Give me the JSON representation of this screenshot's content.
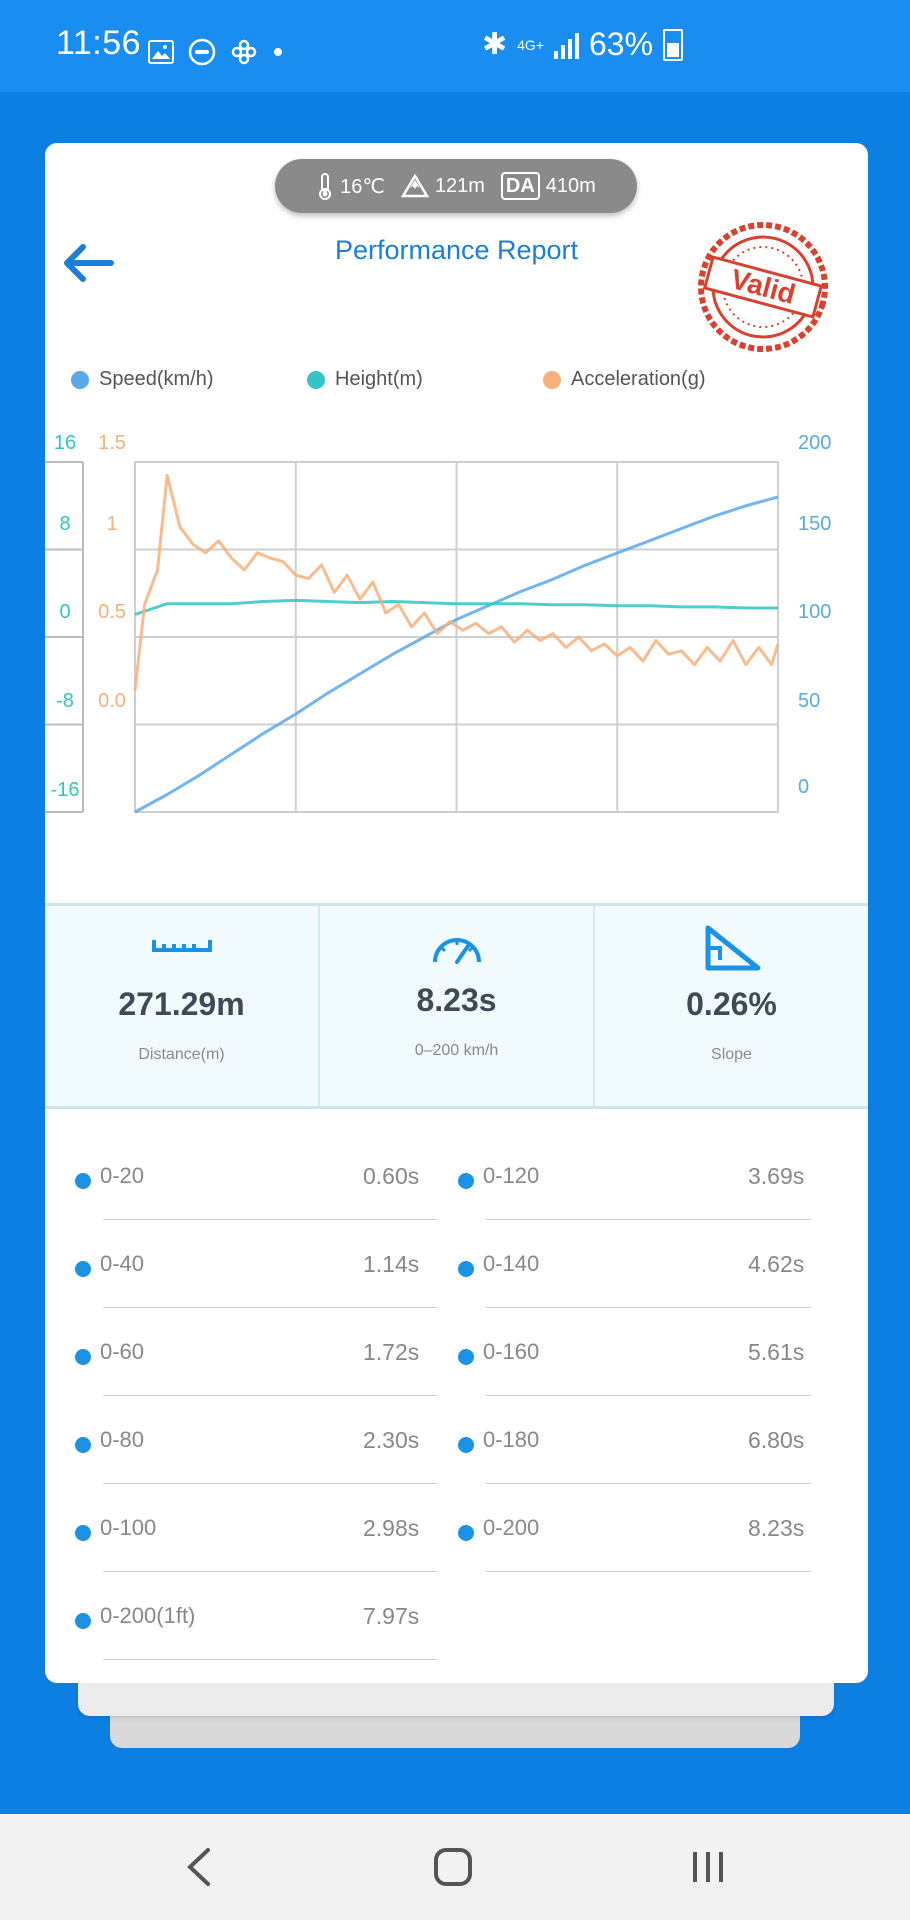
{
  "status_bar": {
    "time": "11:56",
    "network": "4G+",
    "battery": "63%"
  },
  "weather": {
    "temperature": "16℃",
    "altitude": "121m",
    "da_label": "DA",
    "density_altitude": "410m"
  },
  "header": {
    "title": "Performance Report",
    "stamp_text": "Valid"
  },
  "chart_data": {
    "type": "line",
    "series": [
      {
        "name": "Speed(km/h)",
        "color": "#5aa9ea",
        "axis": "speed",
        "x": [
          0,
          1,
          2,
          3,
          4,
          5,
          6,
          7,
          8,
          9,
          10,
          11,
          12,
          13,
          14,
          15,
          16,
          17,
          18,
          19,
          20
        ],
        "values": [
          0,
          10,
          21,
          33,
          45,
          56,
          68,
          79,
          90,
          100,
          110,
          118,
          126,
          133,
          141,
          148,
          155,
          162,
          169,
          175,
          180
        ]
      },
      {
        "name": "Height(m)",
        "color": "#34c4c4",
        "axis": "height",
        "x": [
          0,
          1,
          2,
          3,
          4,
          5,
          6,
          7,
          8,
          9,
          10,
          11,
          12,
          13,
          14,
          15,
          16,
          17,
          18,
          19,
          20
        ],
        "values": [
          0,
          1,
          1,
          1,
          1.2,
          1.3,
          1.2,
          1.1,
          1.2,
          1.1,
          1,
          1,
          1,
          0.9,
          0.9,
          0.8,
          0.8,
          0.7,
          0.7,
          0.6,
          0.6
        ]
      },
      {
        "name": "Acceleration(g)",
        "color": "#f7b07a",
        "axis": "accel",
        "x": [
          0,
          0.3,
          0.7,
          1.0,
          1.4,
          1.8,
          2.2,
          2.6,
          3.0,
          3.4,
          3.8,
          4.2,
          4.6,
          5.0,
          5.4,
          5.8,
          6.2,
          6.6,
          7.0,
          7.4,
          7.8,
          8.2,
          8.6,
          9.0,
          9.4,
          9.8,
          10.2,
          10.6,
          11.0,
          11.4,
          11.8,
          12.2,
          12.6,
          13.0,
          13.4,
          13.8,
          14.2,
          14.6,
          15.0,
          15.4,
          15.8,
          16.2,
          16.6,
          17.0,
          17.4,
          17.8,
          18.2,
          18.6,
          19.0,
          19.4,
          19.8,
          20.0
        ],
        "values": [
          0.05,
          0.55,
          0.75,
          1.3,
          1.0,
          0.9,
          0.85,
          0.92,
          0.82,
          0.75,
          0.85,
          0.82,
          0.8,
          0.72,
          0.7,
          0.78,
          0.62,
          0.72,
          0.58,
          0.68,
          0.5,
          0.55,
          0.42,
          0.5,
          0.38,
          0.45,
          0.4,
          0.44,
          0.38,
          0.42,
          0.33,
          0.4,
          0.34,
          0.38,
          0.3,
          0.36,
          0.28,
          0.32,
          0.25,
          0.3,
          0.22,
          0.34,
          0.26,
          0.28,
          0.2,
          0.3,
          0.22,
          0.34,
          0.2,
          0.3,
          0.2,
          0.32
        ]
      }
    ],
    "axes": {
      "height": {
        "ticks": [
          "16",
          "8",
          "0",
          "-8",
          "-16"
        ],
        "range": [
          -16,
          16
        ],
        "color": "#34c4c4"
      },
      "accel": {
        "ticks": [
          "1.5",
          "1",
          "0.5",
          "0.0"
        ],
        "range": [
          -0.5,
          1.5
        ],
        "color": "#f7b07a"
      },
      "speed": {
        "ticks": [
          "200",
          "150",
          "100",
          "50",
          "0"
        ],
        "range": [
          0,
          200
        ],
        "color": "#5aa9ea"
      }
    },
    "xlim": [
      0,
      20
    ],
    "grid": true,
    "legend_position": "top"
  },
  "legend": {
    "speed": "Speed(km/h)",
    "height": "Height(m)",
    "accel": "Acceleration(g)"
  },
  "stats": {
    "distance": {
      "value": "271.29m",
      "label": "Distance(m)"
    },
    "time": {
      "value": "8.23s",
      "label": "0–200 km/h"
    },
    "slope": {
      "value": "0.26%",
      "label": "Slope"
    }
  },
  "splits": {
    "left": [
      {
        "label": "0-20",
        "value": "0.60s"
      },
      {
        "label": "0-40",
        "value": "1.14s"
      },
      {
        "label": "0-60",
        "value": "1.72s"
      },
      {
        "label": "0-80",
        "value": "2.30s"
      },
      {
        "label": "0-100",
        "value": "2.98s"
      },
      {
        "label": "0-200(1ft)",
        "value": "7.97s"
      }
    ],
    "right": [
      {
        "label": "0-120",
        "value": "3.69s"
      },
      {
        "label": "0-140",
        "value": "4.62s"
      },
      {
        "label": "0-160",
        "value": "5.61s"
      },
      {
        "label": "0-180",
        "value": "6.80s"
      },
      {
        "label": "0-200",
        "value": "8.23s"
      }
    ]
  },
  "colors": {
    "accent": "#1c7fd6",
    "background": "#0c7fe2",
    "stamp": "#d9412f"
  }
}
